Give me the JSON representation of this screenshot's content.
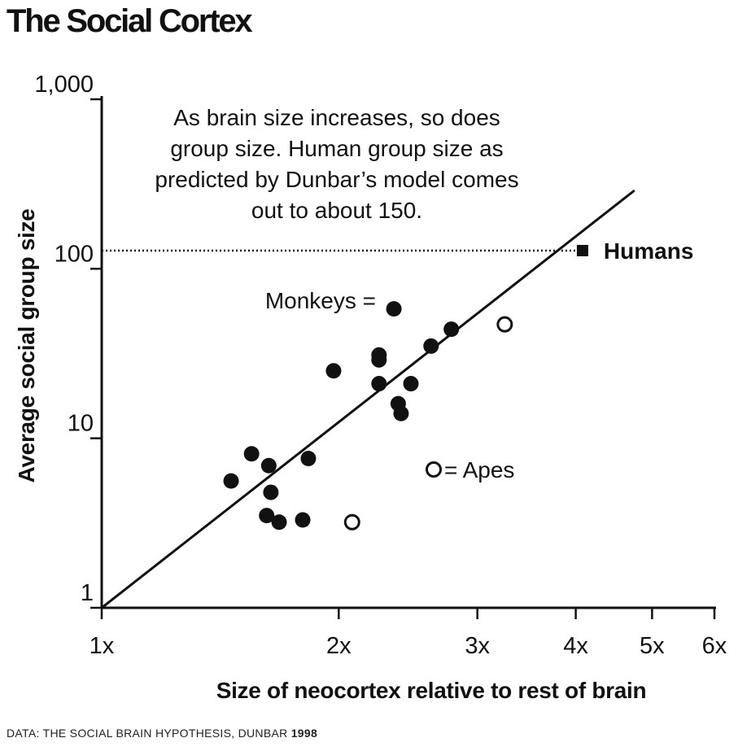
{
  "title": "The Social Cortex",
  "source": {
    "prefix": "DATA: THE SOCIAL BRAIN HYPOTHESIS, DUNBAR ",
    "year": "1998"
  },
  "colors": {
    "ink": "#111111",
    "background": "#ffffff"
  },
  "chart_data": {
    "type": "scatter",
    "title": "The Social Cortex",
    "xlabel": "Size of neocortex relative to rest of brain",
    "ylabel": "Average social group size",
    "x_scale": "log",
    "y_scale": "log",
    "xlim": [
      1,
      6
    ],
    "ylim": [
      1,
      1000
    ],
    "x_ticks": [
      {
        "value": 1,
        "label": "1x"
      },
      {
        "value": 2,
        "label": "2x"
      },
      {
        "value": 3,
        "label": "3x"
      },
      {
        "value": 4,
        "label": "4x"
      },
      {
        "value": 5,
        "label": "5x"
      },
      {
        "value": 6,
        "label": "6x"
      }
    ],
    "y_ticks": [
      {
        "value": 1,
        "label": "1"
      },
      {
        "value": 10,
        "label": "10"
      },
      {
        "value": 100,
        "label": "100"
      },
      {
        "value": 1000,
        "label": "1,000"
      }
    ],
    "annotation": [
      "As brain size increases, so does",
      "group size. Human group size as",
      "predicted by Dunbar’s model comes",
      "out to about 150."
    ],
    "legend": {
      "monkeys": "Monkeys =",
      "apes": "= Apes"
    },
    "humans": {
      "label": "Humans",
      "x": 4.08,
      "y": 128
    },
    "regression_line": {
      "x": [
        1.0,
        4.75
      ],
      "y": [
        1.0,
        290
      ]
    },
    "series": [
      {
        "name": "Monkeys",
        "marker": "filled-circle",
        "points": [
          [
            2.35,
            58
          ],
          [
            2.78,
            44
          ],
          [
            2.62,
            35
          ],
          [
            2.25,
            31
          ],
          [
            2.25,
            29
          ],
          [
            1.97,
            25
          ],
          [
            2.25,
            21
          ],
          [
            2.47,
            21
          ],
          [
            2.38,
            16
          ],
          [
            2.4,
            14
          ],
          [
            1.55,
            8.1
          ],
          [
            1.83,
            7.6
          ],
          [
            1.63,
            6.9
          ],
          [
            1.46,
            5.6
          ],
          [
            1.64,
            4.8
          ],
          [
            1.62,
            3.5
          ],
          [
            1.68,
            3.2
          ],
          [
            1.8,
            3.3
          ]
        ]
      },
      {
        "name": "Apes",
        "marker": "open-circle",
        "points": [
          [
            3.25,
            47
          ],
          [
            2.08,
            3.2
          ]
        ]
      }
    ]
  }
}
